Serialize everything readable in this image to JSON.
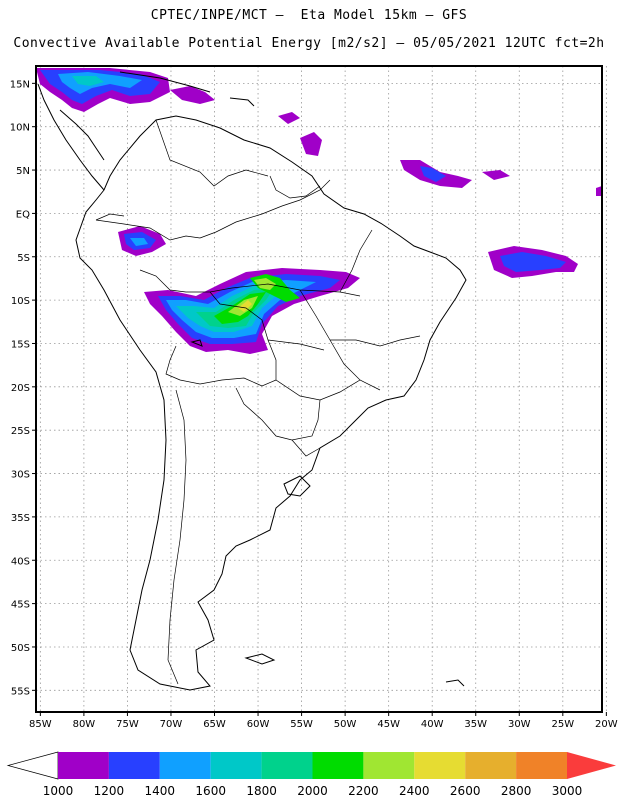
{
  "header": {
    "title_line1": "CPTEC/INPE/MCT –  Eta Model 15km – GFS",
    "title_line2": "Convective Available Potential Energy [m2/s2] – 05/05/2021 12UTC fct=2h"
  },
  "map": {
    "lat_labels": [
      "15N",
      "10N",
      "5N",
      "EQ",
      "5S",
      "10S",
      "15S",
      "20S",
      "25S",
      "30S",
      "35S",
      "40S",
      "45S",
      "50S",
      "55S"
    ],
    "lat_values": [
      15,
      10,
      5,
      0,
      -5,
      -10,
      -15,
      -20,
      -25,
      -30,
      -35,
      -40,
      -45,
      -50,
      -55
    ],
    "lon_labels": [
      "85W",
      "80W",
      "75W",
      "70W",
      "65W",
      "60W",
      "55W",
      "50W",
      "45W",
      "40W",
      "35W",
      "30W",
      "25W",
      "20W"
    ],
    "lon_values": [
      -85,
      -80,
      -75,
      -70,
      -65,
      -60,
      -55,
      -50,
      -45,
      -40,
      -35,
      -30,
      -25,
      -20
    ],
    "lon_range": [
      -85.5,
      -20.5
    ],
    "lat_range": [
      -57.5,
      17
    ],
    "grid": "dotted"
  },
  "colorbar": {
    "labels": [
      "1000",
      "1200",
      "1400",
      "1600",
      "1800",
      "2000",
      "2200",
      "2400",
      "2600",
      "2800",
      "3000"
    ],
    "colors": [
      "#a000c8",
      "#2840ff",
      "#10a0ff",
      "#00c8c8",
      "#00d28c",
      "#00dc00",
      "#a0e632",
      "#e6dc32",
      "#e6af2d",
      "#f08228",
      "#fa3c3c"
    ],
    "under_color": "#ffffff",
    "over_color": "#fa3c3c"
  }
}
